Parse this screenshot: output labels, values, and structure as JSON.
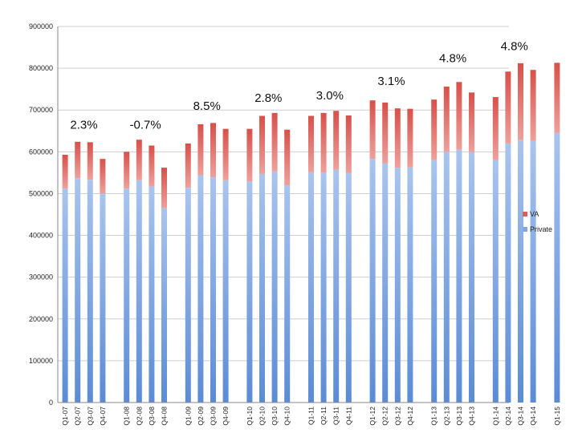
{
  "chart_data": {
    "type": "bar",
    "stacked": true,
    "title": "",
    "xlabel": "",
    "ylabel": "",
    "ylim": [
      0,
      900000
    ],
    "yticks": [
      0,
      100000,
      200000,
      300000,
      400000,
      500000,
      600000,
      700000,
      800000,
      900000
    ],
    "grid": "horizontal",
    "legend": "right",
    "categories": [
      "Q1-07",
      "Q2-07",
      "Q3-07",
      "Q4-07",
      "Q1-08",
      "Q2-08",
      "Q3-08",
      "Q4-08",
      "Q1-09",
      "Q2-09",
      "Q3-09",
      "Q4-09",
      "Q1-10",
      "Q2-10",
      "Q3-10",
      "Q4-10",
      "Q1-11",
      "Q2-11",
      "Q3-11",
      "Q4-11",
      "Q1-12",
      "Q2-12",
      "Q3-12",
      "Q4-12",
      "Q1-13",
      "Q2-13",
      "Q3-13",
      "Q4-13",
      "Q1-14",
      "Q2-14",
      "Q3-14",
      "Q4-14",
      "Q1-15"
    ],
    "series": [
      {
        "name": "Private",
        "color": "#7fa7e3",
        "values": [
          512000,
          537000,
          533000,
          500000,
          512000,
          532000,
          517000,
          465000,
          514000,
          544000,
          539000,
          532000,
          529000,
          547000,
          553000,
          520000,
          551000,
          550000,
          557000,
          549000,
          583000,
          572000,
          562000,
          563000,
          580000,
          600000,
          605000,
          599000,
          580000,
          620000,
          628000,
          626000,
          645000
        ]
      },
      {
        "name": "VA",
        "color": "#d9605a",
        "values": [
          81000,
          87000,
          90000,
          83000,
          88000,
          97000,
          98000,
          97000,
          106000,
          122000,
          130000,
          123000,
          126000,
          139000,
          140000,
          133000,
          135000,
          143000,
          141000,
          138000,
          140000,
          146000,
          142000,
          140000,
          145000,
          156000,
          162000,
          143000,
          151000,
          172000,
          184000,
          170000,
          168000
        ]
      }
    ],
    "annotations": [
      {
        "text": "2.3%",
        "x_index": 1.5,
        "y": 655000
      },
      {
        "text": "-0.7%",
        "x_index": 5.5,
        "y": 655000
      },
      {
        "text": "8.5%",
        "x_index": 9.5,
        "y": 700000
      },
      {
        "text": "2.8%",
        "x_index": 13.5,
        "y": 720000
      },
      {
        "text": "3.0%",
        "x_index": 17.5,
        "y": 725000
      },
      {
        "text": "3.1%",
        "x_index": 21.5,
        "y": 760000
      },
      {
        "text": "4.8%",
        "x_index": 25.5,
        "y": 815000
      },
      {
        "text": "4.8%",
        "x_index": 29.5,
        "y": 843000
      }
    ]
  }
}
